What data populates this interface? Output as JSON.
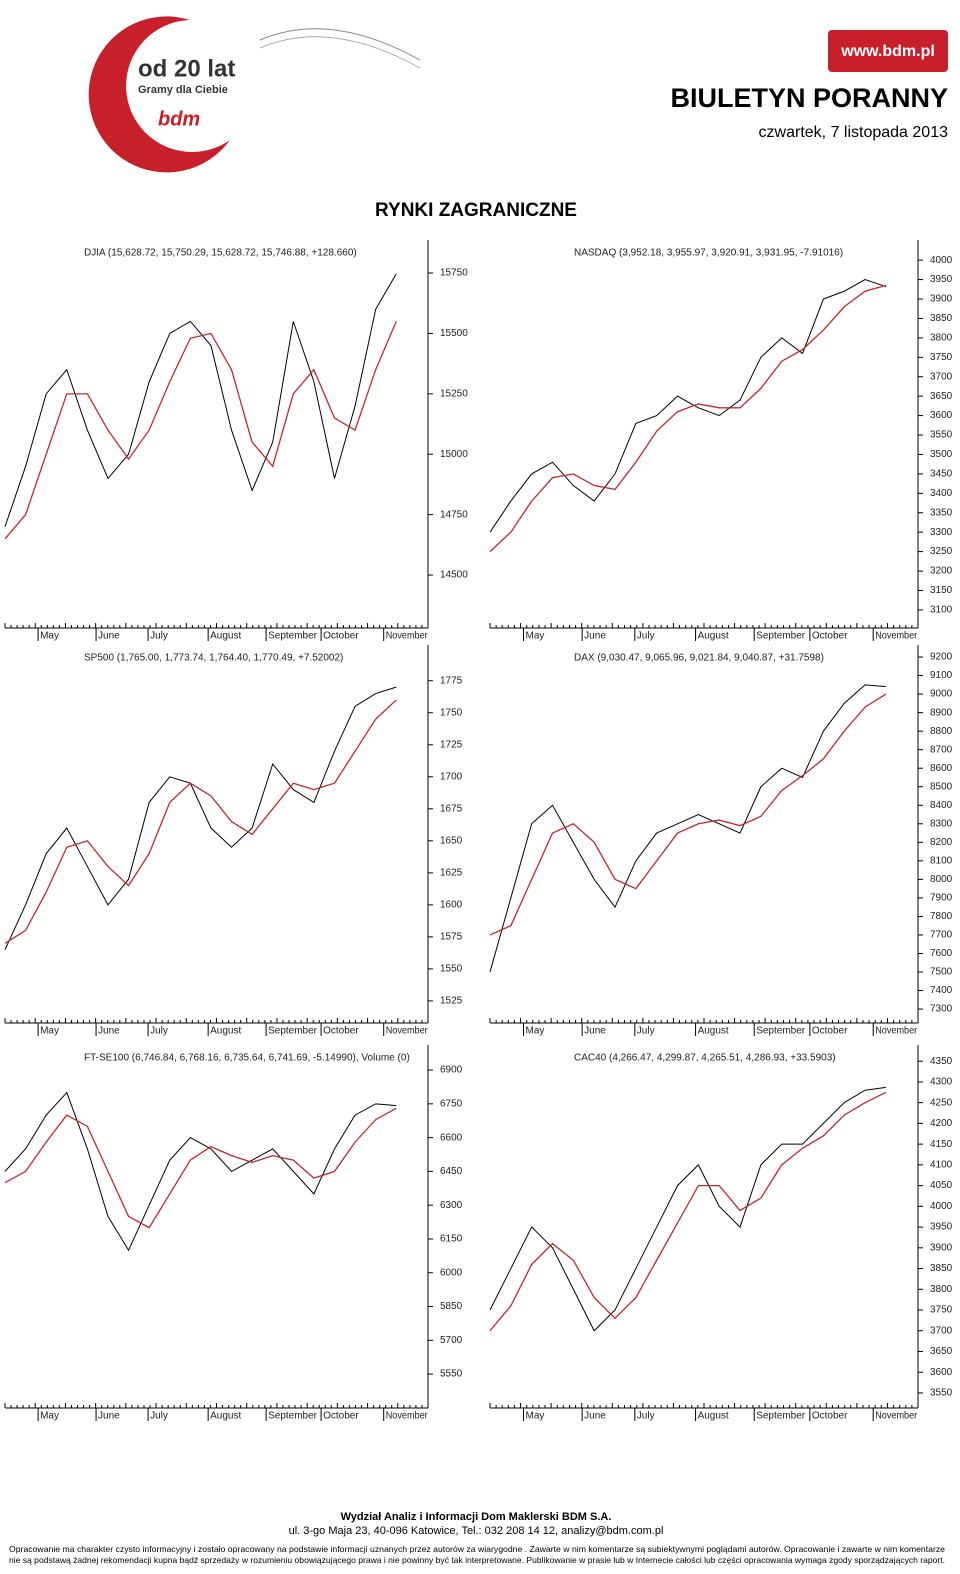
{
  "header": {
    "logo_years": "od 20 lat",
    "logo_slogan": "Gramy dla Ciebie",
    "logo_brand": "bdm",
    "url": "www.bdm.pl",
    "title": "BIULETYN PORANNY",
    "date": "czwartek, 7 listopada 2013"
  },
  "section_title": "RYNKI ZAGRANICZNE",
  "chart_data": [
    {
      "type": "line",
      "title": "DJIA (15,628.72, 15,750.29, 15,628.72, 15,746.88, +128.660)",
      "x_labels": [
        "May",
        "June",
        "July",
        "August",
        "September",
        "October",
        "November"
      ],
      "series": [
        {
          "color": "#000000",
          "values": [
            14700,
            14950,
            15250,
            15350,
            15100,
            14900,
            15000,
            15300,
            15500,
            15550,
            15450,
            15100,
            14850,
            15050,
            15550,
            15300,
            14900,
            15200,
            15600,
            15747
          ]
        },
        {
          "color": "#c0282d",
          "values": [
            14650,
            14750,
            15000,
            15250,
            15250,
            15100,
            14980,
            15100,
            15300,
            15480,
            15500,
            15350,
            15050,
            14950,
            15250,
            15350,
            15150,
            15100,
            15350,
            15550
          ]
        }
      ],
      "ylim": [
        14314,
        15866
      ],
      "yticks": [
        14500,
        14750,
        15000,
        15250,
        15500,
        15750
      ]
    },
    {
      "type": "line",
      "title": "NASDAQ (3,952.18, 3,955.97, 3,920.91, 3,931.95, -7.91016)",
      "x_labels": [
        "May",
        "June",
        "July",
        "August",
        "September",
        "October",
        "November"
      ],
      "series": [
        {
          "color": "#000000",
          "values": [
            3300,
            3380,
            3450,
            3480,
            3420,
            3380,
            3450,
            3580,
            3600,
            3650,
            3620,
            3600,
            3640,
            3750,
            3800,
            3760,
            3900,
            3920,
            3950,
            3932
          ]
        },
        {
          "color": "#c0282d",
          "values": [
            3250,
            3300,
            3380,
            3440,
            3450,
            3420,
            3410,
            3480,
            3560,
            3610,
            3630,
            3620,
            3620,
            3670,
            3740,
            3770,
            3820,
            3880,
            3920,
            3935
          ]
        }
      ],
      "ylim": [
        3074,
        4039
      ],
      "yticks": [
        3100,
        3150,
        3200,
        3250,
        3300,
        3350,
        3400,
        3450,
        3500,
        3550,
        3600,
        3650,
        3700,
        3750,
        3800,
        3850,
        3900,
        3950,
        4000
      ]
    },
    {
      "type": "line",
      "title": "SP500 (1,765.00, 1,773.74, 1,764.40, 1,770.49, +7.52002)",
      "x_labels": [
        "May",
        "June",
        "July",
        "August",
        "September",
        "October",
        "November"
      ],
      "series": [
        {
          "color": "#000000",
          "values": [
            1565,
            1600,
            1640,
            1660,
            1630,
            1600,
            1620,
            1680,
            1700,
            1695,
            1660,
            1645,
            1660,
            1710,
            1690,
            1680,
            1720,
            1755,
            1765,
            1770
          ]
        },
        {
          "color": "#c0282d",
          "values": [
            1570,
            1580,
            1610,
            1645,
            1650,
            1630,
            1615,
            1640,
            1680,
            1695,
            1685,
            1665,
            1655,
            1675,
            1695,
            1690,
            1695,
            1720,
            1745,
            1760
          ]
        }
      ],
      "ylim": [
        1514,
        1799
      ],
      "yticks": [
        1525,
        1550,
        1575,
        1600,
        1625,
        1650,
        1675,
        1700,
        1725,
        1750,
        1775
      ]
    },
    {
      "type": "line",
      "title": "DAX (9,030.47, 9,065.96, 9,021.84, 9,040.87, +31.7598)",
      "x_labels": [
        "May",
        "June",
        "July",
        "August",
        "September",
        "October",
        "November"
      ],
      "series": [
        {
          "color": "#000000",
          "values": [
            7500,
            7900,
            8300,
            8400,
            8200,
            8000,
            7850,
            8100,
            8250,
            8300,
            8350,
            8300,
            8250,
            8500,
            8600,
            8550,
            8800,
            8950,
            9050,
            9040
          ]
        },
        {
          "color": "#c0282d",
          "values": [
            7700,
            7750,
            8000,
            8250,
            8300,
            8200,
            8000,
            7950,
            8100,
            8250,
            8300,
            8320,
            8290,
            8340,
            8480,
            8560,
            8650,
            8800,
            8930,
            9000
          ]
        }
      ],
      "ylim": [
        7268,
        9238
      ],
      "yticks": [
        7300,
        7400,
        7500,
        7600,
        7700,
        7800,
        7900,
        8000,
        8100,
        8200,
        8300,
        8400,
        8500,
        8600,
        8700,
        8800,
        8900,
        9000,
        9100,
        9200
      ]
    },
    {
      "type": "line",
      "title": "FT-SE100 (6,746.84, 6,768.16, 6,735.64, 6,741.69, -5.14990), Volume (0)",
      "x_labels": [
        "May",
        "June",
        "July",
        "August",
        "September",
        "October",
        "November"
      ],
      "series": [
        {
          "color": "#000000",
          "values": [
            6450,
            6550,
            6700,
            6800,
            6550,
            6250,
            6100,
            6300,
            6500,
            6600,
            6550,
            6450,
            6500,
            6550,
            6450,
            6350,
            6550,
            6700,
            6750,
            6742
          ]
        },
        {
          "color": "#c0282d",
          "values": [
            6400,
            6450,
            6580,
            6700,
            6650,
            6450,
            6250,
            6200,
            6350,
            6500,
            6560,
            6520,
            6490,
            6520,
            6500,
            6420,
            6450,
            6580,
            6680,
            6730
          ]
        }
      ],
      "ylim": [
        5435,
        6989
      ],
      "yticks": [
        5550,
        5700,
        5850,
        6000,
        6150,
        6300,
        6450,
        6600,
        6750,
        6900
      ]
    },
    {
      "type": "line",
      "title": "CAC40 (4,266.47, 4,299.87, 4,265.51, 4,286.93, +33.5903)",
      "x_labels": [
        "May",
        "June",
        "July",
        "August",
        "September",
        "October",
        "November"
      ],
      "series": [
        {
          "color": "#000000",
          "values": [
            3750,
            3850,
            3950,
            3900,
            3800,
            3700,
            3750,
            3850,
            3950,
            4050,
            4100,
            4000,
            3950,
            4100,
            4150,
            4150,
            4200,
            4250,
            4280,
            4287
          ]
        },
        {
          "color": "#c0282d",
          "values": [
            3700,
            3760,
            3860,
            3910,
            3870,
            3780,
            3730,
            3780,
            3870,
            3960,
            4050,
            4050,
            3990,
            4020,
            4100,
            4140,
            4170,
            4220,
            4250,
            4275
          ]
        }
      ],
      "ylim": [
        3533,
        4377
      ],
      "yticks": [
        3550,
        3600,
        3650,
        3700,
        3750,
        3800,
        3850,
        3900,
        3950,
        4000,
        4050,
        4100,
        4150,
        4200,
        4250,
        4300,
        4350
      ]
    }
  ],
  "footer": {
    "company": "Wydział Analiz i Informacji Dom Maklerski BDM S.A.",
    "address": "ul. 3-go Maja 23, 40-096 Katowice, Tel.: 032 208 14 12, analizy@bdm.com.pl",
    "disclaimer_1": "Opracowanie  ma charakter czysto informacyjny i zostało opracowany na podstawie informacji uznanych przez autorów za wiarygodne . Zawarte w nim komentarze są subiektywnymi poglądami autorów. Opracowanie i zawarte w nim komentarze",
    "disclaimer_2": "nie są podstawą żadnej rekomendacji kupna bądź sprzedaży w rozumieniu obowiązującego prawa i nie powinny być tak interpretowane. Publikowanie w prasie lub w Internecie całości lub części opracowania wymaga zgody sporządzających raport."
  }
}
